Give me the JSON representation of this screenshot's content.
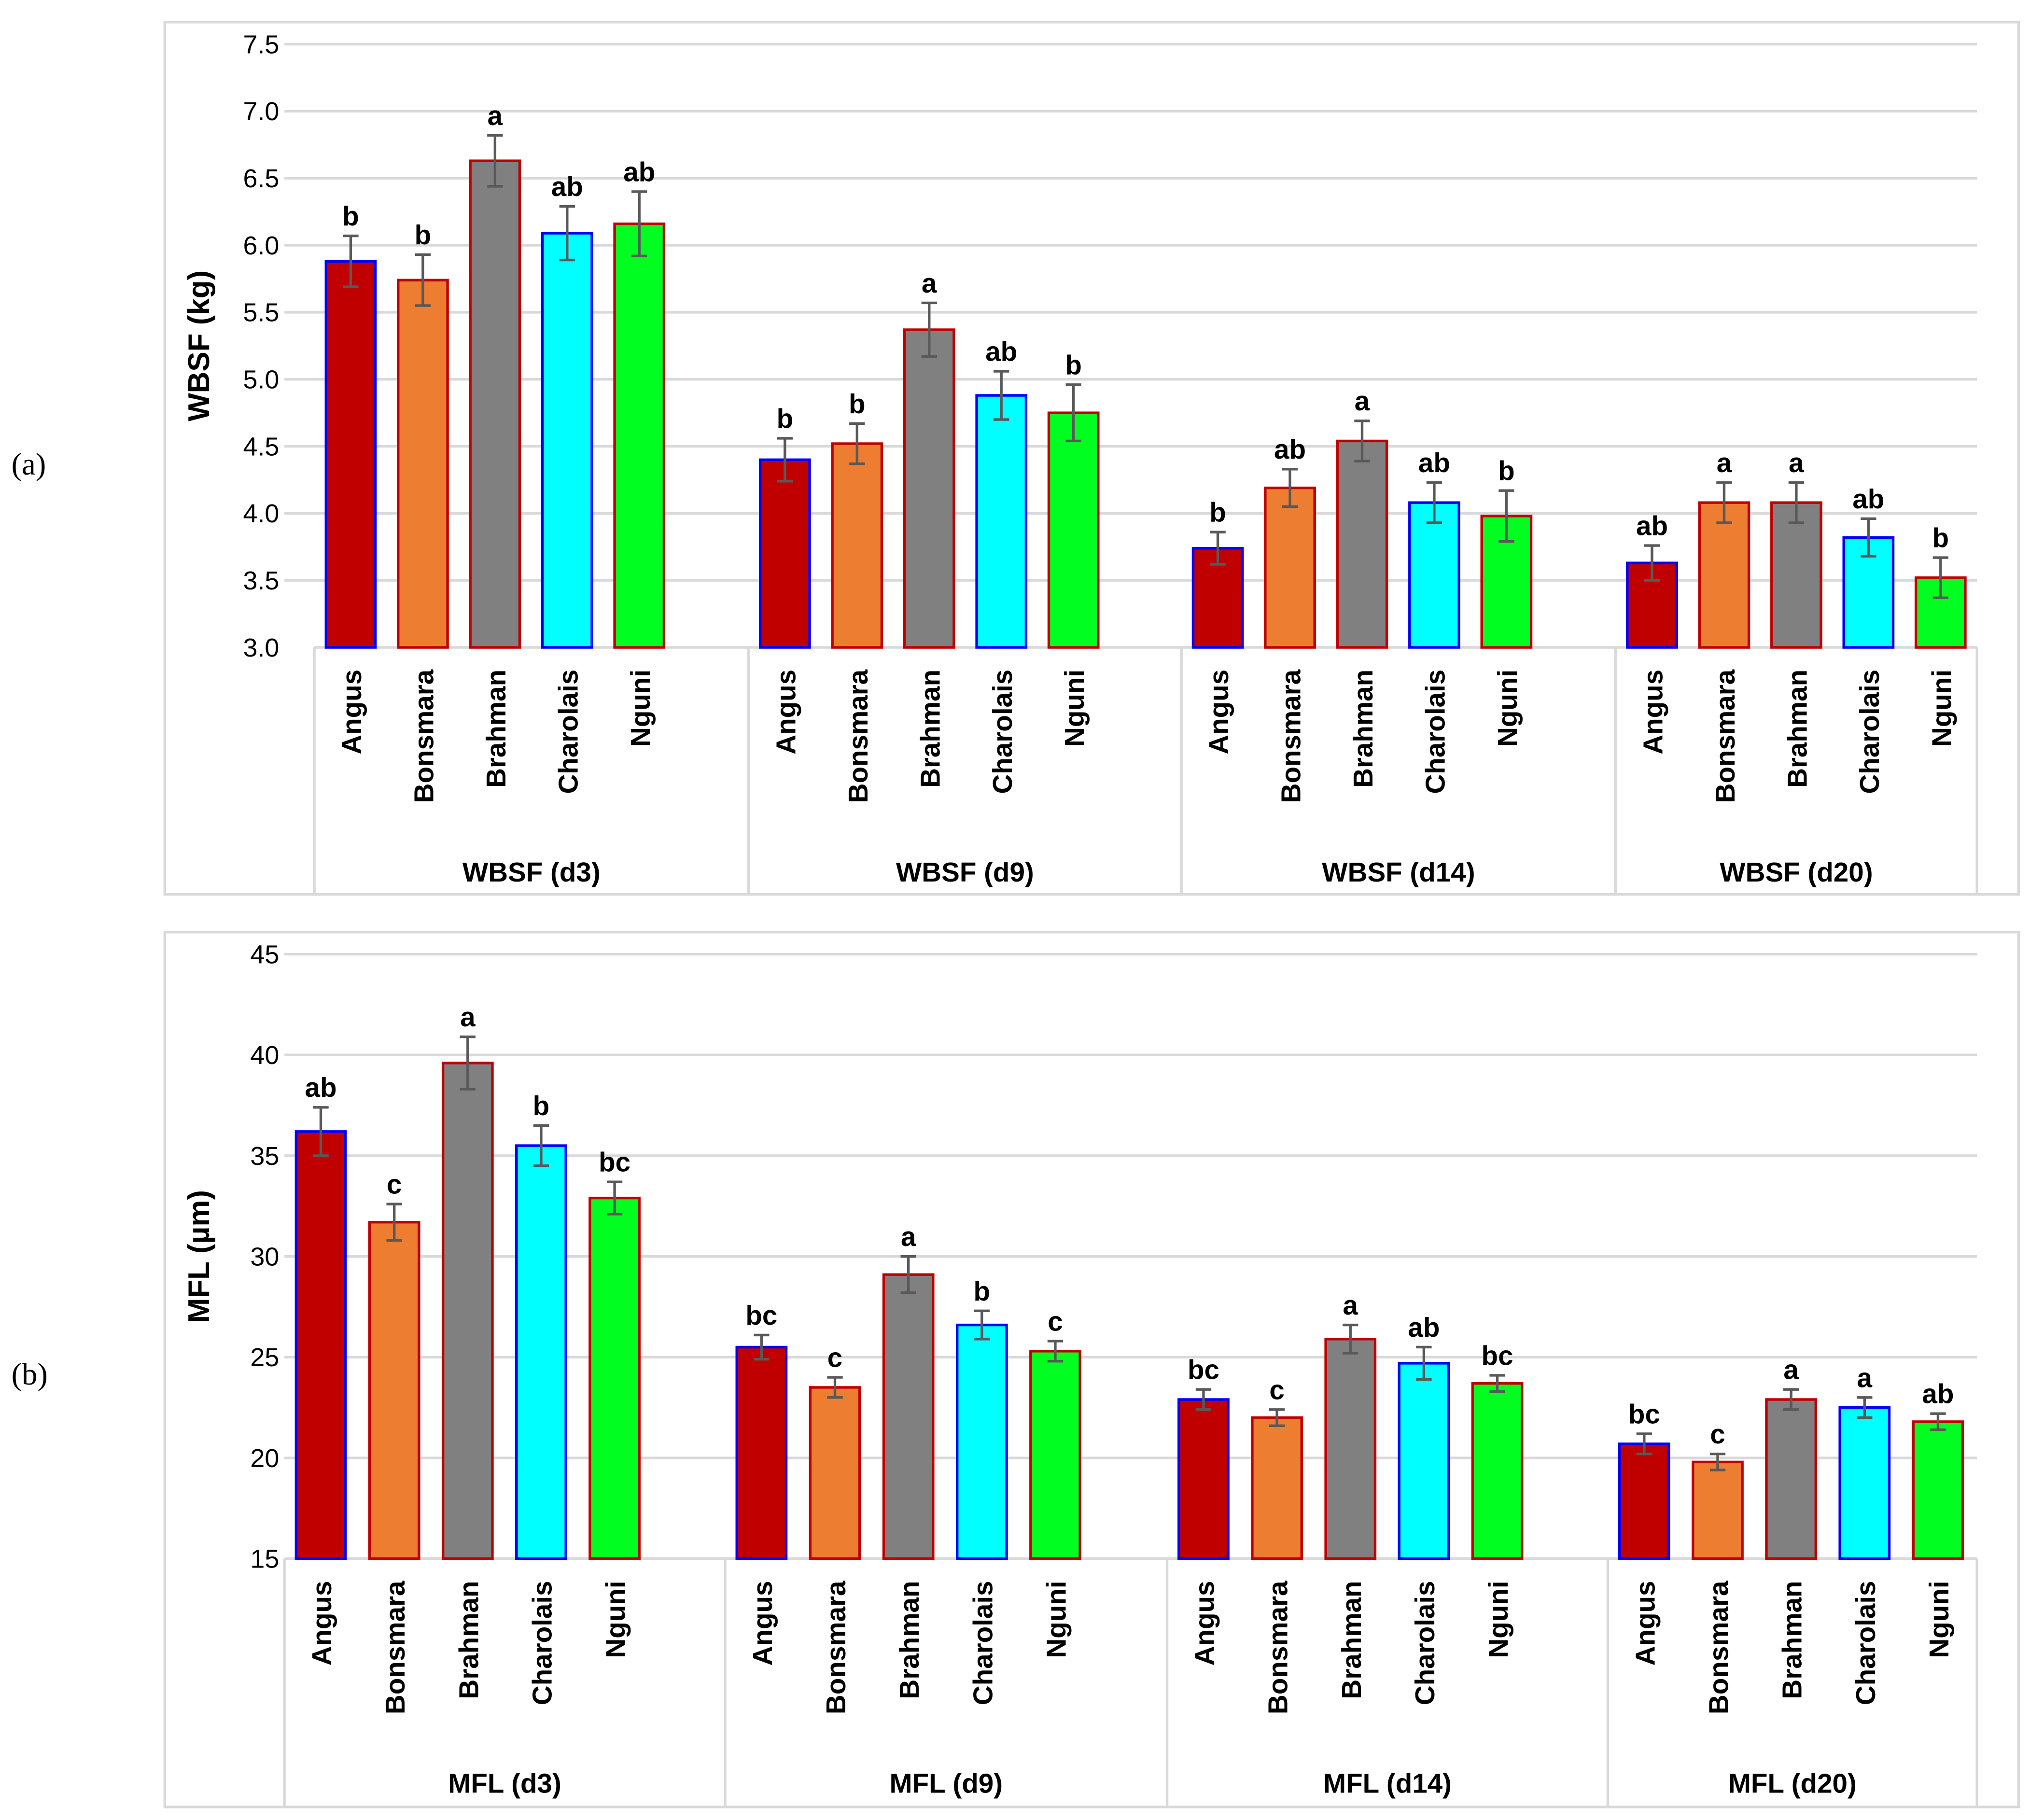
{
  "chart_data": [
    {
      "type": "bar",
      "panel_label": "(a)",
      "ylabel": "WBSF (kg)",
      "ylim": [
        3.0,
        7.5
      ],
      "yticks": [
        "3.0",
        "3.5",
        "4.0",
        "4.5",
        "5.0",
        "5.5",
        "6.0",
        "6.5",
        "7.0",
        "7.5"
      ],
      "grid": true,
      "breeds": [
        "Angus",
        "Bonsmara",
        "Brahman",
        "Charolais",
        "Nguni"
      ],
      "groups": [
        {
          "label": "WBSF (d3)",
          "values": [
            5.88,
            5.74,
            6.63,
            6.09,
            6.16
          ],
          "errors": [
            0.19,
            0.19,
            0.19,
            0.2,
            0.24
          ],
          "letters": [
            "b",
            "b",
            "a",
            "ab",
            "ab"
          ]
        },
        {
          "label": "WBSF (d9)",
          "values": [
            4.4,
            4.52,
            5.37,
            4.88,
            4.75
          ],
          "errors": [
            0.16,
            0.15,
            0.2,
            0.18,
            0.21
          ],
          "letters": [
            "b",
            "b",
            "a",
            "ab",
            "b"
          ]
        },
        {
          "label": "WBSF (d14)",
          "values": [
            3.74,
            4.19,
            4.54,
            4.08,
            3.98
          ],
          "errors": [
            0.12,
            0.14,
            0.15,
            0.15,
            0.19
          ],
          "letters": [
            "b",
            "ab",
            "a",
            "ab",
            "b"
          ]
        },
        {
          "label": "WBSF (d20)",
          "values": [
            3.63,
            4.08,
            4.08,
            3.82,
            3.52
          ],
          "errors": [
            0.13,
            0.15,
            0.15,
            0.14,
            0.15
          ],
          "letters": [
            "ab",
            "a",
            "a",
            "ab",
            "b"
          ]
        }
      ]
    },
    {
      "type": "bar",
      "panel_label": "(b)",
      "ylabel": "MFL (µm)",
      "ylim": [
        15,
        45
      ],
      "yticks": [
        "15",
        "20",
        "25",
        "30",
        "35",
        "40",
        "45"
      ],
      "grid": true,
      "breeds": [
        "Angus",
        "Bonsmara",
        "Brahman",
        "Charolais",
        "Nguni"
      ],
      "groups": [
        {
          "label": "MFL (d3)",
          "values": [
            36.2,
            31.7,
            39.6,
            35.5,
            32.9
          ],
          "errors": [
            1.2,
            0.9,
            1.3,
            1.0,
            0.8
          ],
          "letters": [
            "ab",
            "c",
            "a",
            "b",
            "bc"
          ]
        },
        {
          "label": "MFL (d9)",
          "values": [
            25.5,
            23.5,
            29.1,
            26.6,
            25.3
          ],
          "errors": [
            0.6,
            0.5,
            0.9,
            0.7,
            0.5
          ],
          "letters": [
            "bc",
            "c",
            "a",
            "b",
            "c"
          ]
        },
        {
          "label": "MFL (d14)",
          "values": [
            22.9,
            22.0,
            25.9,
            24.7,
            23.7
          ],
          "errors": [
            0.5,
            0.4,
            0.7,
            0.8,
            0.4
          ],
          "letters": [
            "bc",
            "c",
            "a",
            "ab",
            "bc"
          ]
        },
        {
          "label": "MFL (d20)",
          "values": [
            20.7,
            19.8,
            22.9,
            22.5,
            21.8
          ],
          "errors": [
            0.5,
            0.4,
            0.5,
            0.5,
            0.4
          ],
          "letters": [
            "bc",
            "c",
            "a",
            "a",
            "ab"
          ]
        }
      ]
    }
  ],
  "colors": {
    "breed_fill": [
      "#C00000",
      "#ED7D31",
      "#808080",
      "#00FFFF",
      "#00FF21"
    ],
    "breed_border": [
      "#0000FF",
      "#C00000",
      "#C00000",
      "#0000FF",
      "#C00000"
    ],
    "error_bar": "#595959",
    "grid": "#D9D9D9"
  }
}
